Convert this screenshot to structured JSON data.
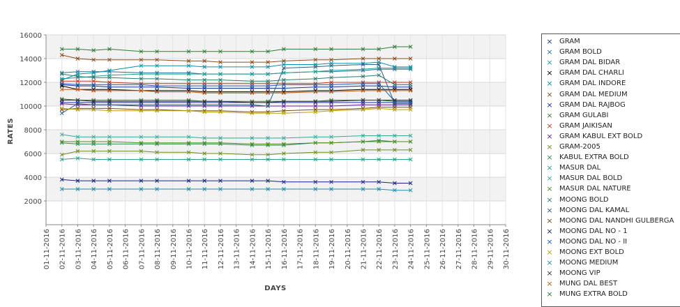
{
  "chart_data": {
    "type": "line",
    "xlabel": "DAYS",
    "ylabel": "RATES",
    "ylim": [
      0,
      16000
    ],
    "yticks": [
      2000,
      4000,
      6000,
      8000,
      10000,
      12000,
      14000,
      16000
    ],
    "grid": true,
    "legend_position": "right",
    "x_tick_labels": [
      "01-11-2016",
      "02-11-2016",
      "03-11-2016",
      "04-11-2016",
      "05-11-2016",
      "06-11-2016",
      "07-11-2016",
      "08-11-2016",
      "09-11-2016",
      "10-11-2016",
      "11-11-2016",
      "12-11-2016",
      "13-11-2016",
      "14-11-2016",
      "15-11-2016",
      "16-11-2016",
      "17-11-2016",
      "18-11-2016",
      "19-11-2016",
      "20-11-2016",
      "21-11-2016",
      "22-11-2016",
      "23-11-2016",
      "24-11-2016",
      "25-11-2016",
      "26-11-2016",
      "27-11-2016",
      "28-11-2016",
      "29-11-2016",
      "30-11-2016"
    ],
    "x_dates": [
      "02-11-2016",
      "03-11-2016",
      "04-11-2016",
      "05-11-2016",
      "07-11-2016",
      "08-11-2016",
      "10-11-2016",
      "11-11-2016",
      "12-11-2016",
      "14-11-2016",
      "15-11-2016",
      "16-11-2016",
      "18-11-2016",
      "19-11-2016",
      "21-11-2016",
      "22-11-2016",
      "23-11-2016",
      "24-11-2016"
    ],
    "series": [
      {
        "name": "GRAM",
        "color": "#1f3a93",
        "values": [
          11800,
          11700,
          11700,
          11600,
          11600,
          11600,
          11500,
          11500,
          11500,
          11500,
          11500,
          11500,
          11600,
          11600,
          11700,
          11700,
          11600,
          11600
        ]
      },
      {
        "name": "GRAM BOLD",
        "color": "#2c6f9e",
        "values": [
          12800,
          12900,
          12900,
          12900,
          12800,
          12800,
          12800,
          12700,
          12700,
          12700,
          12700,
          12800,
          12900,
          12900,
          13000,
          13100,
          13100,
          13100
        ]
      },
      {
        "name": "GRAM DAL BIDAR",
        "color": "#1a9e8f",
        "values": [
          12300,
          12400,
          12500,
          12600,
          12700,
          12700,
          12700,
          12700,
          12700,
          12700,
          12700,
          12800,
          12900,
          13000,
          13100,
          13200,
          13200,
          13200
        ]
      },
      {
        "name": "GRAM DAL CHARLI",
        "color": "#000000",
        "values": [
          11700,
          11400,
          11400,
          11400,
          11300,
          11300,
          11300,
          11200,
          11200,
          11200,
          11200,
          11200,
          11300,
          11300,
          11400,
          11400,
          11400,
          11400
        ]
      },
      {
        "name": "GRAM DAL INDORE",
        "color": "#0a8fa8",
        "values": [
          12200,
          12700,
          12800,
          13000,
          13400,
          13400,
          13400,
          13300,
          13300,
          13300,
          13300,
          13500,
          13500,
          13600,
          13600,
          13700,
          13300,
          13300
        ]
      },
      {
        "name": "GRAM DAL MEDIUM",
        "color": "#8a4a1c",
        "values": [
          14300,
          14000,
          13900,
          13900,
          13900,
          13900,
          13800,
          13800,
          13700,
          13700,
          13700,
          13800,
          13900,
          13900,
          14000,
          14000,
          14000,
          14000
        ]
      },
      {
        "name": "GRAM DAL RAJBOG",
        "color": "#1c2fa8",
        "values": [
          10300,
          10300,
          10300,
          10300,
          10300,
          10300,
          10300,
          10300,
          10300,
          10300,
          10300,
          10300,
          10300,
          10300,
          10300,
          10300,
          10300,
          10300
        ]
      },
      {
        "name": "GRAM GULABI",
        "color": "#3a7a3a",
        "values": [
          10600,
          10500,
          10500,
          10500,
          10500,
          10500,
          10500,
          10400,
          10400,
          10400,
          10400,
          10400,
          10400,
          10500,
          10500,
          10500,
          10400,
          10400
        ]
      },
      {
        "name": "GRAM JAIKISAN",
        "color": "#c0391c",
        "values": [
          12100,
          12100,
          12100,
          12000,
          11900,
          11900,
          11900,
          11900,
          11900,
          11900,
          11900,
          11900,
          11900,
          12000,
          12000,
          12000,
          12000,
          12000
        ]
      },
      {
        "name": "GRAM KABUL EXT BOLD",
        "color": "#6a1fa0",
        "values": [
          10200,
          10100,
          10100,
          10100,
          10000,
          10000,
          10000,
          10000,
          10000,
          10000,
          10000,
          10000,
          10000,
          10000,
          10100,
          10100,
          10100,
          10100
        ]
      },
      {
        "name": "GRAM-2005",
        "color": "#6b8e23",
        "values": [
          5900,
          6200,
          6200,
          6200,
          6200,
          6100,
          6100,
          6000,
          6000,
          5900,
          5900,
          6000,
          6100,
          6100,
          6300,
          6300,
          6300,
          6300
        ]
      },
      {
        "name": "KABUL EXTRA BOLD",
        "color": "#2e8b57",
        "values": [
          6900,
          6800,
          6800,
          6800,
          6800,
          6800,
          6800,
          6800,
          6800,
          6700,
          6700,
          6700,
          6900,
          6900,
          7000,
          7100,
          7000,
          7000
        ]
      },
      {
        "name": "MASUR DAL",
        "color": "#2a9d8f",
        "values": [
          5500,
          5600,
          5500,
          5500,
          5500,
          5500,
          5500,
          5500,
          5500,
          5500,
          5500,
          5500,
          5500,
          5500,
          5500,
          5500,
          5500,
          5500
        ]
      },
      {
        "name": "MASUR DAL BOLD",
        "color": "#3aa89a",
        "values": [
          7600,
          7400,
          7400,
          7400,
          7400,
          7400,
          7400,
          7300,
          7300,
          7300,
          7300,
          7300,
          7400,
          7400,
          7500,
          7500,
          7500,
          7500
        ]
      },
      {
        "name": "MASUR DAL NATURE",
        "color": "#4a8f1f",
        "values": [
          7000,
          7000,
          7000,
          7000,
          6900,
          6900,
          6900,
          6900,
          6900,
          6800,
          6800,
          6800,
          6900,
          6900,
          7000,
          7000,
          7000,
          7000
        ]
      },
      {
        "name": "MOONG BOLD",
        "color": "#2b7a6f",
        "values": [
          12700,
          12500,
          12400,
          12400,
          12300,
          12300,
          12200,
          12200,
          12200,
          12100,
          12100,
          12200,
          12300,
          12400,
          12500,
          12600,
          11800,
          11800
        ]
      },
      {
        "name": "MOONG DAL KAMAL",
        "color": "#2f5f7f",
        "values": [
          9400,
          10200,
          10100,
          10100,
          10100,
          10100,
          10100,
          10100,
          10100,
          10100,
          10000,
          13200,
          13300,
          13400,
          13500,
          13500,
          10200,
          10200
        ]
      },
      {
        "name": "MOONG DAL NANDHI GULBERGA",
        "color": "#7a4a1a",
        "values": [
          9700,
          9800,
          9800,
          9800,
          9700,
          9700,
          9600,
          9600,
          9600,
          9500,
          9500,
          9600,
          9700,
          9700,
          9800,
          9900,
          9900,
          9900
        ]
      },
      {
        "name": "MOONG DAL NO - 1",
        "color": "#1a237e",
        "values": [
          3800,
          3700,
          3700,
          3700,
          3700,
          3700,
          3700,
          3700,
          3700,
          3700,
          3700,
          3600,
          3600,
          3600,
          3600,
          3600,
          3500,
          3500
        ]
      },
      {
        "name": "MOONG DAL NO - II",
        "color": "#1e5fbf",
        "values": [
          11900,
          11800,
          11800,
          11800,
          11800,
          11700,
          11700,
          11700,
          11700,
          11700,
          11700,
          11800,
          11800,
          11800,
          11900,
          11900,
          10400,
          10400
        ]
      },
      {
        "name": "MOONG EXT BOLD",
        "color": "#b8a000",
        "values": [
          9800,
          9700,
          9700,
          9600,
          9600,
          9600,
          9600,
          9500,
          9500,
          9400,
          9400,
          9400,
          9500,
          9600,
          9700,
          9800,
          9700,
          9700
        ]
      },
      {
        "name": "MOONG MEDIUM",
        "color": "#1a8fa8",
        "values": [
          3000,
          3000,
          3000,
          3000,
          3000,
          3000,
          3000,
          3000,
          3000,
          3000,
          3000,
          3000,
          3000,
          3000,
          3000,
          3000,
          2900,
          2900
        ]
      },
      {
        "name": "MOONG VIP",
        "color": "#333333",
        "values": [
          10500,
          10500,
          10400,
          10400,
          10400,
          10400,
          10400,
          10400,
          10400,
          10300,
          10300,
          10400,
          10400,
          10400,
          10500,
          10500,
          10500,
          10500
        ]
      },
      {
        "name": "MUNG DAL BEST",
        "color": "#c05a10",
        "values": [
          11400,
          11400,
          11300,
          11300,
          11300,
          11200,
          11200,
          11100,
          11100,
          11100,
          11100,
          11100,
          11200,
          11200,
          11300,
          11300,
          11300,
          11300
        ]
      },
      {
        "name": "MUNG EXTRA BOLD",
        "color": "#2e7d32",
        "values": [
          14800,
          14800,
          14700,
          14800,
          14600,
          14600,
          14600,
          14600,
          14600,
          14600,
          14600,
          14800,
          14800,
          14800,
          14800,
          14800,
          15000,
          15000
        ]
      }
    ]
  }
}
